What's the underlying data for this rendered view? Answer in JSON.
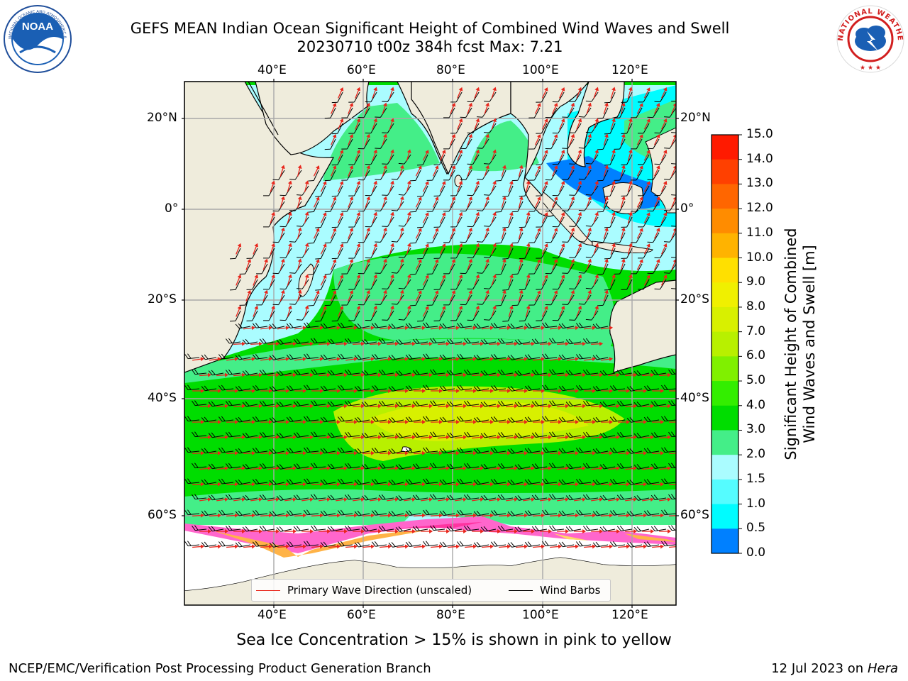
{
  "title": {
    "line1": "GEFS MEAN Indian Ocean Significant Height of Combined Wind Waves and Swell",
    "line2": "20230710 t00z 384h fcst   Max: 7.21"
  },
  "logos": {
    "left_text": "NOAA",
    "left_ring_text": "NATIONAL OCEANIC AND ATMOSPHERIC ADMINISTRATION · U.S. DEPARTMENT OF COMMERCE",
    "right_ring_text": "NATIONAL WEATHER SERVICE"
  },
  "map": {
    "lon_labels_top": [
      "40°E",
      "60°E",
      "80°E",
      "100°E",
      "120°E"
    ],
    "lon_labels_bottom": [
      "40°E",
      "60°E",
      "80°E",
      "100°E",
      "120°E"
    ],
    "lat_labels_left": [
      "20°N",
      "0°",
      "20°S",
      "40°S",
      "60°S"
    ],
    "lat_labels_right": [
      "20°N",
      "0°",
      "20°S",
      "40°S",
      "60°S"
    ],
    "colors": {
      "land": "#efecdc",
      "ice_shelf": "#ffffff",
      "ice_fringe": [
        "#ff66cc",
        "#ffb347",
        "#ffd966",
        "#ff33a0"
      ],
      "wave_arrow": "#e8251b",
      "barb": "#000000"
    }
  },
  "legend": {
    "primary_wave": "Primary Wave Direction (unscaled)",
    "wind_barbs": "Wind Barbs"
  },
  "colorbar": {
    "label_line1": "Significant Height of Combined",
    "label_line2": "Wind Waves and Swell [m]",
    "ticks": [
      "15.0",
      "14.0",
      "13.0",
      "12.0",
      "11.0",
      "10.0",
      "9.0",
      "8.0",
      "7.0",
      "6.0",
      "5.0",
      "4.0",
      "3.0",
      "2.0",
      "1.5",
      "1.0",
      "0.5",
      "0.0"
    ],
    "colors": [
      "#ff1a00",
      "#ff4000",
      "#ff6600",
      "#ff8c00",
      "#ffb300",
      "#ffe000",
      "#f0f000",
      "#d8f000",
      "#b8f000",
      "#80f000",
      "#33ee00",
      "#00dd00",
      "#44ee88",
      "#aafcff",
      "#55fcff",
      "#00fcff",
      "#0080ff",
      "#0000ff"
    ]
  },
  "sea_ice_note": "Sea Ice Concentration > 15% is shown in pink to yellow",
  "footer": {
    "left": "NCEP/EMC/Verification Post Processing Product Generation Branch",
    "right_prefix": "12 Jul 2023 on ",
    "right_italic": "Hera"
  }
}
